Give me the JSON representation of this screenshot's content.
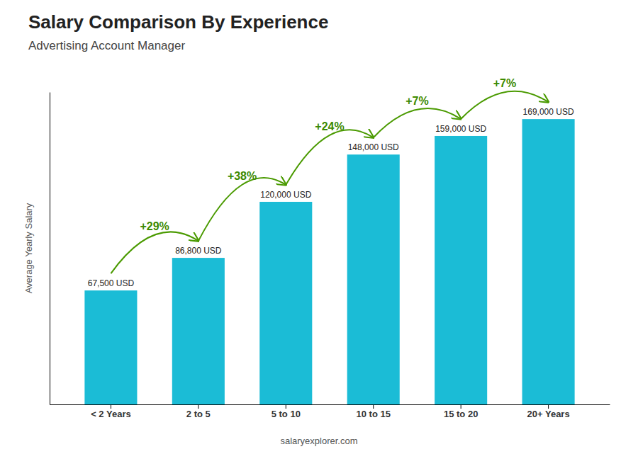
{
  "chart_data": {
    "type": "bar",
    "title": "Salary Comparison By Experience",
    "subtitle": "Advertising Account Manager",
    "y_label": "Average Yearly Salary",
    "categories": [
      "< 2 Years",
      "2 to 5",
      "5 to 10",
      "10 to 15",
      "15 to 20",
      "20+ Years"
    ],
    "values": [
      67500,
      86800,
      120000,
      148000,
      159000,
      169000
    ],
    "value_labels": [
      "67,500 USD",
      "86,800 USD",
      "120,000 USD",
      "148,000 USD",
      "159,000 USD",
      "169,000 USD"
    ],
    "data_labels": true,
    "color": "#1bbcd6",
    "ylim": [
      0,
      185000
    ],
    "tick_labels": "x",
    "annotations": [
      "+29%",
      "+38%",
      "+24%",
      "+7%",
      "+7%"
    ],
    "caption": "salaryexplorer.com"
  }
}
